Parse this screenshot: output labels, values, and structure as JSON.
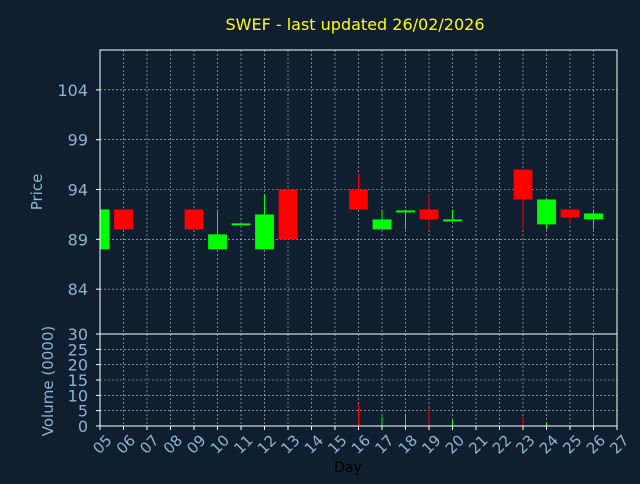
{
  "chart_data": {
    "type": "candlestick",
    "title": "SWEF - last updated 26/02/2026",
    "xlabel": "Day",
    "ylabel_price": "Price",
    "ylabel_volume": "Volume (0000)",
    "x_ticks": [
      "05",
      "06",
      "07",
      "08",
      "09",
      "10",
      "11",
      "12",
      "13",
      "14",
      "15",
      "16",
      "17",
      "18",
      "19",
      "20",
      "21",
      "22",
      "23",
      "24",
      "25",
      "26",
      "27"
    ],
    "price_ticks": [
      84,
      89,
      94,
      99,
      104
    ],
    "price_range": [
      79.5,
      108
    ],
    "volume_ticks": [
      0,
      5,
      10,
      15,
      20,
      25,
      30
    ],
    "volume_range": [
      0,
      30
    ],
    "grid": true,
    "colors": {
      "background": "#0f1f30",
      "axis": "#ffffff",
      "grid": "#ffffff",
      "title": "#ffff00",
      "labels": "#8fb3d0",
      "up": "#00ff00",
      "down": "#ff0000"
    },
    "candles": [
      {
        "day": "05",
        "open": 88.0,
        "high": 92.0,
        "low": 88.0,
        "close": 92.0,
        "volume": 0
      },
      {
        "day": "06",
        "open": 92.0,
        "high": 92.0,
        "low": 90.0,
        "close": 90.0,
        "volume": 0
      },
      {
        "day": "09",
        "open": 92.0,
        "high": 92.0,
        "low": 90.0,
        "close": 90.0,
        "volume": 0
      },
      {
        "day": "10",
        "open": 88.0,
        "high": 92.0,
        "low": 88.0,
        "close": 89.5,
        "volume": 0
      },
      {
        "day": "11",
        "open": 90.4,
        "high": 90.6,
        "low": 90.4,
        "close": 90.6,
        "volume": 0
      },
      {
        "day": "12",
        "open": 88.0,
        "high": 93.5,
        "low": 88.0,
        "close": 91.5,
        "volume": 0
      },
      {
        "day": "13",
        "open": 94.0,
        "high": 94.0,
        "low": 89.0,
        "close": 89.0,
        "volume": 0
      },
      {
        "day": "16",
        "open": 94.0,
        "high": 95.5,
        "low": 92.0,
        "close": 92.0,
        "volume": 7
      },
      {
        "day": "17",
        "open": 90.0,
        "high": 92.0,
        "low": 90.0,
        "close": 91.0,
        "volume": 3
      },
      {
        "day": "18",
        "open": 91.7,
        "high": 92.0,
        "low": 90.0,
        "close": 91.9,
        "volume": 4
      },
      {
        "day": "19",
        "open": 92.0,
        "high": 93.5,
        "low": 90.0,
        "close": 91.0,
        "volume": 6
      },
      {
        "day": "20",
        "open": 90.8,
        "high": 92.0,
        "low": 90.8,
        "close": 91.0,
        "volume": 2
      },
      {
        "day": "23",
        "open": 96.0,
        "high": 96.0,
        "low": 90.0,
        "close": 93.0,
        "volume": 3
      },
      {
        "day": "24",
        "open": 90.5,
        "high": 93.0,
        "low": 90.0,
        "close": 93.0,
        "volume": 1
      },
      {
        "day": "25",
        "open": 92.0,
        "high": 92.0,
        "low": 90.5,
        "close": 91.2,
        "volume": 0
      },
      {
        "day": "26",
        "open": 91.0,
        "high": 92.0,
        "low": 90.0,
        "close": 91.6,
        "volume": 29
      }
    ]
  }
}
